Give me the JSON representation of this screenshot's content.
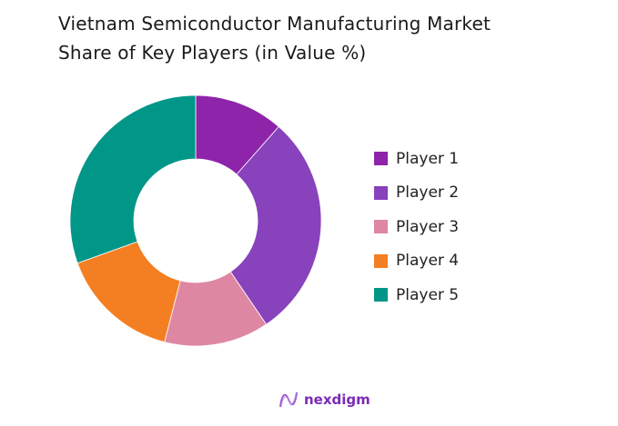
{
  "title": {
    "line1": "Vietnam Semiconductor Manufacturing Market",
    "line2": "Share of Key Players (in Value %)"
  },
  "chart_data": {
    "type": "pie",
    "variant": "donut",
    "title": "Vietnam Semiconductor Manufacturing Market Share of Key Players (in Value %)",
    "categories": [
      "Player 1",
      "Player 2",
      "Player 3",
      "Player 4",
      "Player 5"
    ],
    "values": [
      11.5,
      29,
      13.5,
      15.5,
      30.5
    ],
    "colors": [
      "#8e24aa",
      "#8842bb",
      "#de87a2",
      "#f47f22",
      "#009688"
    ],
    "start_angle": "12 o'clock",
    "direction": "clockwise",
    "legend_position": "right",
    "data_labels": false
  },
  "legend": {
    "items": [
      {
        "label": "Player 1",
        "color": "#8e24aa"
      },
      {
        "label": "Player 2",
        "color": "#8842bb"
      },
      {
        "label": "Player 3",
        "color": "#de87a2"
      },
      {
        "label": "Player 4",
        "color": "#f47f22"
      },
      {
        "label": "Player 5",
        "color": "#009688"
      }
    ]
  },
  "brand": {
    "name": "nexdigm",
    "icon": "nexdigm-wave-logo-icon"
  }
}
